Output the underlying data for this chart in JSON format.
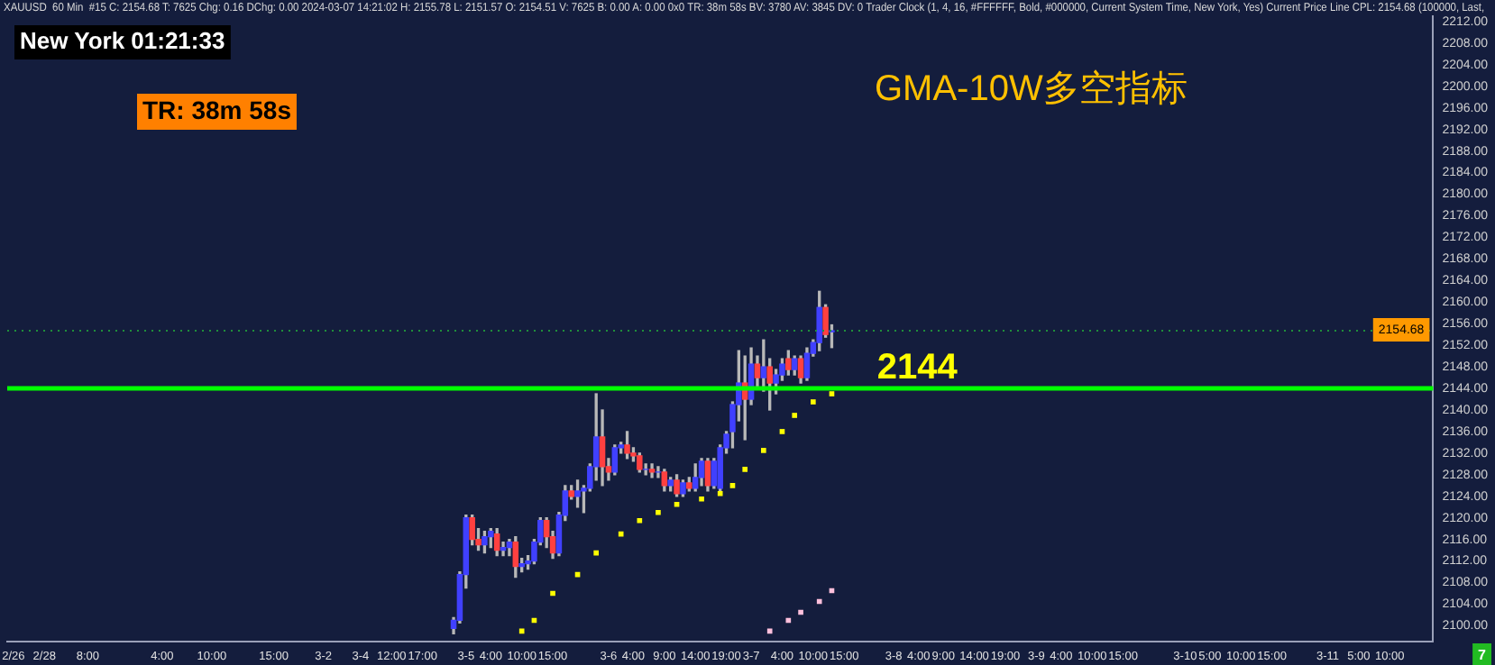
{
  "chart_data": {
    "type": "candlestick",
    "title": "GMA-10W多空指标",
    "subtitle": "XAUUSD  60 Min  #15 C: 2154.68 T: 7625 Chg: 0.16 DChg: 0.00 2024-03-07 14:21:02 H: 2155.78 L: 2151.57 O: 2154.51 V: 7625 B: 0.00 A: 0.00 0x0 TR: 38m 58s BV: 3780 AV: 3845 DV: 0 Trader Clock (1, 4, 16, #FFFFFF, Bold, #000000, Current System Time, New York, Yes) Current Price Line CPL: 2154.68 (100000, Last,",
    "annotations": [
      "New York 01:21:33",
      "TR: 38m 58s",
      "7"
    ],
    "categories": [
      null,
      "2/26",
      null,
      null,
      null,
      null,
      "2/28",
      null,
      null,
      null,
      null,
      null,
      null,
      "8:00",
      null,
      null,
      null,
      null,
      null,
      null,
      null,
      null,
      null,
      null,
      null,
      "4:00",
      null,
      null,
      null,
      null,
      null,
      null,
      null,
      "10:00",
      null,
      null,
      null,
      null,
      null,
      null,
      null,
      null,
      null,
      "15:00",
      null,
      null,
      null,
      null,
      null,
      null,
      null,
      "3-2",
      null,
      null,
      null,
      null,
      null,
      "3-4",
      null,
      null,
      null,
      null,
      "12:00",
      null,
      null,
      null,
      null,
      "17:00",
      null,
      null,
      null,
      null,
      null,
      null,
      "3-5",
      null,
      null,
      null,
      "4:00",
      null,
      null,
      null,
      null,
      "10:00",
      null,
      null,
      null,
      null,
      "15:00",
      null,
      null,
      null,
      null,
      null,
      null,
      null,
      null,
      "3-6",
      null,
      null,
      null,
      "4:00",
      null,
      null,
      null,
      null,
      "9:00",
      null,
      null,
      null,
      null,
      "14:00",
      null,
      null,
      null,
      null,
      "19:00",
      null,
      null,
      null,
      "3-7",
      null,
      null,
      null,
      null,
      "4:00",
      null,
      null,
      null,
      null,
      "10:00",
      null,
      null,
      null,
      null,
      "15:00",
      null,
      null,
      null,
      null,
      null,
      null,
      null,
      "3-8",
      null,
      null,
      null,
      "4:00",
      null,
      null,
      null,
      "9:00",
      null,
      null,
      null,
      null,
      "14:00",
      null,
      null,
      null,
      null,
      "19:00",
      null,
      null,
      null,
      null,
      "3-9",
      null,
      null,
      null,
      "4:00",
      null,
      null,
      null,
      null,
      "10:00",
      null,
      null,
      null,
      null,
      "15:00",
      null,
      null,
      null,
      null,
      null,
      null,
      null,
      null,
      null,
      "3-10",
      null,
      null,
      null,
      "5:00",
      null,
      null,
      null,
      null,
      "10:00",
      null,
      null,
      null,
      null,
      "15:00",
      null,
      null,
      null,
      null,
      null,
      null,
      null,
      null,
      "3-11",
      null,
      null,
      null,
      null,
      "5:00",
      null,
      null,
      null,
      null,
      "10:00",
      null,
      null,
      null,
      null,
      null,
      null,
      null
    ],
    "ohlc": [
      null,
      null,
      null,
      null,
      null,
      null,
      null,
      null,
      null,
      null,
      null,
      null,
      null,
      null,
      null,
      null,
      null,
      null,
      null,
      null,
      null,
      null,
      null,
      null,
      null,
      null,
      null,
      null,
      null,
      null,
      null,
      null,
      null,
      null,
      null,
      null,
      null,
      null,
      null,
      null,
      null,
      null,
      null,
      null,
      null,
      null,
      null,
      null,
      null,
      null,
      null,
      null,
      null,
      null,
      null,
      null,
      null,
      null,
      null,
      null,
      null,
      null,
      null,
      null,
      null,
      null,
      null,
      null,
      null,
      null,
      null,
      null,
      [
        2099.5,
        2101.5,
        2098.5,
        2101
      ],
      [
        2101,
        2110,
        2100.5,
        2109.5
      ],
      [
        2109.5,
        2120.5,
        2107,
        2120
      ],
      [
        2120,
        2120.5,
        2115,
        2116
      ],
      [
        2116,
        2118,
        2114,
        2115
      ],
      [
        2115,
        2117.5,
        2113.5,
        2116.5
      ],
      [
        2116.5,
        2118,
        2114.5,
        2117.5
      ],
      [
        2117,
        2118,
        2113,
        2114
      ],
      [
        2114,
        2115.5,
        2113,
        2114.5
      ],
      [
        2114.5,
        2116,
        2113,
        2115.5
      ],
      [
        2115.5,
        2116.5,
        2109,
        2111
      ],
      [
        2111,
        2112.5,
        2110,
        2111.5
      ],
      [
        2111.5,
        2113,
        2110.5,
        2112
      ],
      [
        2112,
        2116,
        2111.5,
        2115.5
      ],
      [
        2115.5,
        2120,
        2115,
        2119.5
      ],
      [
        2119.5,
        2120,
        2114.5,
        2116.5
      ],
      [
        2116.5,
        2117.5,
        2112.5,
        2113.5
      ],
      [
        2113.5,
        2121,
        2113,
        2120.5
      ],
      [
        2120.5,
        2126,
        2119.5,
        2125
      ],
      [
        2125,
        2126,
        2123.5,
        2124
      ],
      [
        2124,
        2127,
        2122,
        2125
      ],
      [
        2125,
        2126,
        2121,
        2125.5
      ],
      [
        2125.5,
        2130,
        2125,
        2129.5
      ],
      [
        2129.5,
        2143,
        2127,
        2135
      ],
      [
        2135,
        2140,
        2126,
        2129.5
      ],
      [
        2129.5,
        2131,
        2127,
        2128.5
      ],
      [
        2128.5,
        2133.5,
        2128,
        2133
      ],
      [
        2133,
        2134,
        2132,
        2133.5
      ],
      [
        2133.5,
        2136,
        2131,
        2132
      ],
      [
        2132,
        2133,
        2130.5,
        2131.5
      ],
      [
        2131.5,
        2132,
        2128.5,
        2129
      ],
      [
        2129,
        2130,
        2128,
        2129
      ],
      [
        2129,
        2130,
        2127.5,
        2128.5
      ],
      [
        2128.5,
        2129.5,
        2127.5,
        2128.5
      ],
      [
        2128.5,
        2129,
        2125,
        2126
      ],
      [
        2126,
        2127.5,
        2125,
        2127
      ],
      [
        2127,
        2128,
        2124,
        2124.5
      ],
      [
        2124.5,
        2127,
        2124,
        2126.5
      ],
      [
        2126.5,
        2127.5,
        2125,
        2125.5
      ],
      [
        2125.5,
        2130,
        2125,
        2127.5
      ],
      [
        2127.5,
        2131,
        2126,
        2130.5
      ],
      [
        2130.5,
        2131,
        2125,
        2126
      ],
      [
        2126,
        2131,
        2125.5,
        2130.5
      ],
      [
        2125.5,
        2133.5,
        2124.5,
        2133
      ],
      [
        2133,
        2136,
        2132,
        2135.5
      ],
      [
        2136,
        2141.5,
        2133,
        2141
      ],
      [
        2141,
        2151,
        2138,
        2145
      ],
      [
        2145,
        2150,
        2134.5,
        2142
      ],
      [
        2142,
        2151.5,
        2141,
        2148.5
      ],
      [
        2148.5,
        2150,
        2144,
        2146
      ],
      [
        2146,
        2153,
        2143.5,
        2148
      ],
      [
        2148,
        2149.5,
        2140,
        2145
      ],
      [
        2145,
        2147.5,
        2143,
        2146.5
      ],
      [
        2146.5,
        2149.5,
        2145.5,
        2148.5
      ],
      [
        2149.5,
        2151,
        2146.5,
        2147.5
      ],
      [
        2147.5,
        2150,
        2146.5,
        2149.5
      ],
      [
        2149.5,
        2150,
        2145,
        2146
      ],
      [
        2146,
        2151.5,
        2145.5,
        2150.5
      ],
      [
        2150.5,
        2153,
        2150,
        2152.5
      ],
      [
        2152.5,
        2162,
        2151,
        2159
      ],
      [
        2159,
        2159.5,
        2153.5,
        2154
      ],
      [
        2154.51,
        2155.78,
        2151.57,
        2154.68
      ],
      null,
      null,
      null,
      null,
      null,
      null,
      null,
      null,
      null,
      null,
      null,
      null,
      null,
      null,
      null,
      null,
      null,
      null,
      null,
      null,
      null,
      null,
      null,
      null,
      null,
      null,
      null,
      null,
      null,
      null,
      null,
      null,
      null,
      null,
      null,
      null,
      null,
      null,
      null,
      null,
      null,
      null,
      null,
      null,
      null,
      null,
      null,
      null,
      null,
      null,
      null,
      null,
      null,
      null,
      null,
      null,
      null,
      null,
      null,
      null,
      null,
      null,
      null,
      null,
      null,
      null,
      null,
      null,
      null,
      null,
      null,
      null,
      null,
      null,
      null,
      null,
      null,
      null,
      null,
      null,
      null,
      null,
      null,
      null,
      null,
      null,
      null,
      null,
      null,
      null,
      null,
      null,
      null,
      null,
      null,
      null,
      null
    ],
    "colors": [
      null,
      null,
      null,
      null,
      null,
      null,
      null,
      null,
      null,
      null,
      null,
      null,
      null,
      null,
      null,
      null,
      null,
      null,
      null,
      null,
      null,
      null,
      null,
      null,
      null,
      null,
      null,
      null,
      null,
      null,
      null,
      null,
      null,
      null,
      null,
      null,
      null,
      null,
      null,
      null,
      null,
      null,
      null,
      null,
      null,
      null,
      null,
      null,
      null,
      null,
      null,
      null,
      null,
      null,
      null,
      null,
      null,
      null,
      null,
      null,
      null,
      null,
      null,
      null,
      null,
      null,
      null,
      null,
      null,
      null,
      null,
      null,
      "#4040ff",
      "#4040ff",
      "#4040ff",
      "#ff4040",
      "#ff4040",
      "#4040ff",
      "#4040ff",
      "#ff4040",
      "#4040ff",
      "#4040ff",
      "#ff4040",
      "#4040ff",
      "#4040ff",
      "#4040ff",
      "#4040ff",
      "#ff4040",
      "#ff4040",
      "#4040ff",
      "#4040ff",
      "#ff4040",
      "#4040ff",
      "#4040ff",
      "#4040ff",
      "#4040ff",
      "#ff4040",
      "#ff4040",
      "#4040ff",
      "#4040ff",
      "#ff4040",
      "#ff4040",
      "#ff4040",
      "#4040ff",
      "#ff4040",
      "#4040ff",
      "#ff4040",
      "#4040ff",
      "#ff4040",
      "#4040ff",
      "#ff4040",
      "#4040ff",
      "#4040ff",
      "#ff4040",
      "#4040ff",
      "#4040ff",
      "#4040ff",
      "#4040ff",
      "#4040ff",
      "#ff4040",
      "#4040ff",
      "#ff4040",
      "#4040ff",
      "#ff4040",
      "#4040ff",
      "#4040ff",
      "#ff4040",
      "#4040ff",
      "#ff4040",
      "#4040ff",
      "#4040ff",
      "#4040ff",
      "#ff4040",
      "#4040ff",
      null,
      null,
      null,
      null,
      null,
      null,
      null,
      null,
      null,
      null,
      null,
      null,
      null,
      null,
      null,
      null,
      null,
      null,
      null,
      null,
      null,
      null,
      null,
      null,
      null,
      null,
      null,
      null,
      null,
      null,
      null,
      null,
      null,
      null,
      null,
      null,
      null,
      null,
      null,
      null,
      null,
      null,
      null,
      null,
      null,
      null,
      null,
      null,
      null,
      null,
      null,
      null,
      null,
      null,
      null,
      null,
      null,
      null,
      null,
      null,
      null,
      null,
      null,
      null,
      null,
      null,
      null,
      null,
      null,
      null,
      null,
      null,
      null,
      null,
      null,
      null,
      null,
      null,
      null,
      null,
      null,
      null,
      null,
      null,
      null,
      null,
      null,
      null,
      null,
      null,
      null,
      null,
      null,
      null,
      null,
      null,
      null
    ],
    "series": [
      {
        "type": "scatter",
        "color": "#ffff00",
        "marker": "square",
        "values": [
          null,
          null,
          null,
          null,
          null,
          null,
          null,
          null,
          null,
          null,
          null,
          null,
          null,
          null,
          null,
          null,
          null,
          null,
          null,
          null,
          null,
          null,
          null,
          null,
          null,
          null,
          null,
          null,
          null,
          null,
          null,
          null,
          null,
          null,
          null,
          null,
          null,
          null,
          null,
          null,
          null,
          null,
          null,
          null,
          null,
          null,
          null,
          null,
          null,
          null,
          null,
          null,
          null,
          null,
          null,
          null,
          null,
          null,
          null,
          null,
          null,
          null,
          null,
          null,
          null,
          null,
          null,
          null,
          null,
          null,
          null,
          null,
          null,
          null,
          null,
          null,
          null,
          null,
          null,
          null,
          null,
          null,
          null,
          2099,
          null,
          2101,
          null,
          null,
          2106,
          null,
          null,
          null,
          2109.5,
          null,
          null,
          2113.5,
          null,
          null,
          null,
          2117,
          null,
          null,
          2119.5,
          null,
          null,
          2121,
          null,
          null,
          2122.5,
          null,
          null,
          null,
          2123.5,
          null,
          null,
          2124.5,
          null,
          2126,
          null,
          2129,
          null,
          null,
          2132.5,
          null,
          null,
          2136,
          null,
          2139,
          null,
          null,
          2141.5,
          null,
          null,
          2143,
          null,
          null,
          null,
          null,
          null,
          null,
          null,
          null,
          null,
          null,
          null,
          null,
          null,
          null,
          null,
          null,
          null,
          null,
          null,
          null,
          null,
          null,
          null,
          null,
          null,
          null,
          null,
          null,
          null,
          null,
          null,
          null,
          null,
          null,
          null,
          null,
          null,
          null,
          null,
          null,
          null,
          null,
          null,
          null,
          null,
          null,
          null,
          null,
          null,
          null,
          null,
          null,
          null,
          null,
          null,
          null,
          null,
          null,
          null,
          null,
          null,
          null,
          null,
          null,
          null,
          null,
          null,
          null,
          null,
          null,
          null,
          null,
          null,
          null,
          null,
          null,
          null,
          null,
          null,
          null,
          null,
          null,
          null,
          null,
          null,
          null,
          null,
          null,
          null,
          null,
          null,
          null,
          null,
          null,
          null,
          null,
          null
        ]
      },
      {
        "type": "scatter",
        "color": "#ffc0dc",
        "marker": "square",
        "values": [
          null,
          null,
          null,
          null,
          null,
          null,
          null,
          null,
          null,
          null,
          null,
          null,
          null,
          null,
          null,
          null,
          null,
          null,
          null,
          null,
          null,
          null,
          null,
          null,
          null,
          null,
          null,
          null,
          null,
          null,
          null,
          null,
          null,
          null,
          null,
          null,
          null,
          null,
          null,
          null,
          null,
          null,
          null,
          null,
          null,
          null,
          null,
          null,
          null,
          null,
          null,
          null,
          null,
          null,
          null,
          null,
          null,
          null,
          null,
          null,
          null,
          null,
          null,
          null,
          null,
          null,
          null,
          null,
          null,
          null,
          null,
          null,
          null,
          null,
          null,
          null,
          null,
          null,
          null,
          null,
          null,
          null,
          null,
          null,
          null,
          null,
          null,
          null,
          null,
          null,
          null,
          null,
          null,
          null,
          null,
          null,
          null,
          null,
          null,
          null,
          null,
          null,
          null,
          null,
          null,
          null,
          null,
          null,
          null,
          null,
          null,
          null,
          null,
          null,
          null,
          null,
          null,
          null,
          null,
          null,
          null,
          null,
          null,
          2099,
          null,
          null,
          2101,
          null,
          2102.5,
          null,
          null,
          2104.5,
          null,
          2106.5,
          null,
          null,
          null,
          null,
          null,
          null,
          null,
          null,
          null,
          null,
          null,
          null,
          null,
          null,
          null,
          null,
          null,
          null,
          null,
          null,
          null,
          null,
          null,
          null,
          null,
          null,
          null,
          null,
          null,
          null,
          null,
          null,
          null,
          null,
          null,
          null,
          null,
          null,
          null,
          null,
          null,
          null,
          null,
          null,
          null,
          null,
          null,
          null,
          null,
          null,
          null,
          null,
          null,
          null,
          null,
          null,
          null,
          null,
          null,
          null,
          null,
          null,
          null,
          null,
          null,
          null,
          null,
          null,
          null,
          null,
          null,
          null,
          null,
          null,
          null,
          null,
          null,
          null,
          null,
          null,
          null,
          null,
          null,
          null,
          null,
          null,
          null,
          null,
          null,
          null,
          null,
          null,
          null,
          null,
          null,
          null,
          null
        ]
      }
    ],
    "ylim": [
      2097,
      2213
    ],
    "yticks": [
      {
        "value": 2100,
        "label": "2100.00"
      },
      {
        "value": 2104,
        "label": "2104.00"
      },
      {
        "value": 2108,
        "label": "2108.00"
      },
      {
        "value": 2112,
        "label": "2112.00"
      },
      {
        "value": 2116,
        "label": "2116.00"
      },
      {
        "value": 2120,
        "label": "2120.00"
      },
      {
        "value": 2124,
        "label": "2124.00"
      },
      {
        "value": 2128,
        "label": "2128.00"
      },
      {
        "value": 2132,
        "label": "2132.00"
      },
      {
        "value": 2136,
        "label": "2136.00"
      },
      {
        "value": 2140,
        "label": "2140.00"
      },
      {
        "value": 2144,
        "label": "2144.00"
      },
      {
        "value": 2148,
        "label": "2148.00"
      },
      {
        "value": 2152,
        "label": "2152.00"
      },
      {
        "value": 2156,
        "label": "2156.00"
      },
      {
        "value": 2160,
        "label": "2160.00"
      },
      {
        "value": 2164,
        "label": "2164.00"
      },
      {
        "value": 2168,
        "label": "2168.00"
      },
      {
        "value": 2172,
        "label": "2172.00"
      },
      {
        "value": 2176,
        "label": "2176.00"
      },
      {
        "value": 2180,
        "label": "2180.00"
      },
      {
        "value": 2184,
        "label": "2184.00"
      },
      {
        "value": 2188,
        "label": "2188.00"
      },
      {
        "value": 2192,
        "label": "2192.00"
      },
      {
        "value": 2196,
        "label": "2196.00"
      },
      {
        "value": 2200,
        "label": "2200.00"
      },
      {
        "value": 2204,
        "label": "2204.00"
      },
      {
        "value": 2208,
        "label": "2208.00"
      },
      {
        "value": 2212,
        "label": "2212.00"
      }
    ],
    "ref_lines": [
      {
        "axis": "y",
        "value": 2144,
        "label": "2144",
        "color": "#00ff00",
        "line_style": "solid"
      },
      {
        "axis": "y",
        "value": 2154.68,
        "label": "2154.68",
        "color": "#1f8f3a",
        "line_style": "dotted"
      }
    ],
    "grid": false,
    "legend": false
  }
}
